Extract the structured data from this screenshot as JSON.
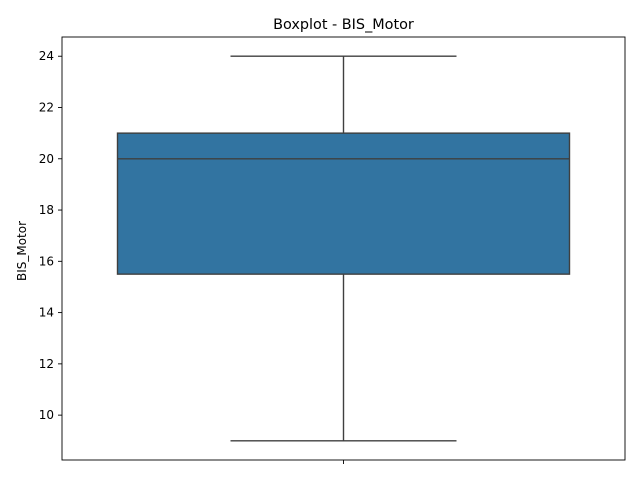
{
  "chart_data": {
    "type": "boxplot",
    "title": "Boxplot - BIS_Motor",
    "xlabel": "",
    "ylabel": "BIS_Motor",
    "ylim": [
      8.25,
      24.75
    ],
    "yticks": [
      10,
      12,
      14,
      16,
      18,
      20,
      22,
      24
    ],
    "categories": [
      ""
    ],
    "series": [
      {
        "whisker_low": 9,
        "q1": 15.5,
        "median": 20,
        "q3": 21,
        "whisker_high": 24,
        "color": "#3274a1"
      }
    ],
    "grid": false,
    "legend": "none"
  }
}
